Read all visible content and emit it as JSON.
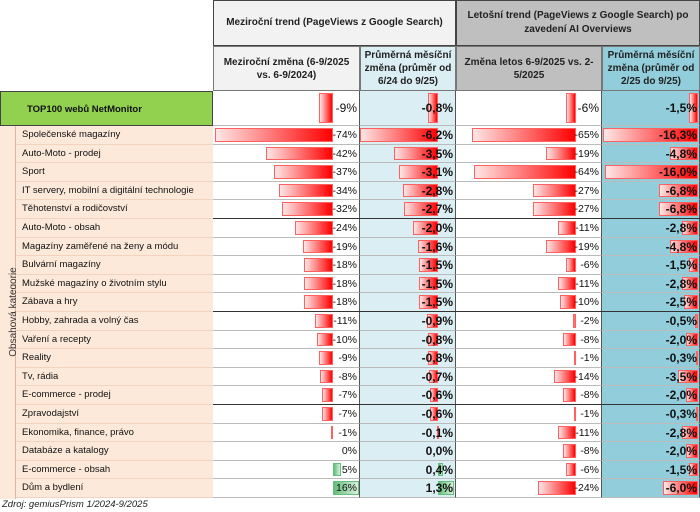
{
  "header": {
    "group1": "Meziroční trend (PageViews z Google Search)",
    "group2": "Letošní trend (PageViews z Google Search) po zavedení AI Overviews",
    "col_a": "Meziroční změna (6-9/2025 vs. 6-9/2024)",
    "col_b": "Průměrná měsíční změna (průměr od 6/24 do 9/25)",
    "col_c": "Změna letos  6-9/2025 vs. 2-5/2025",
    "col_d": "Průměrná měsíční změna (průměr od 2/25 do 9/25)"
  },
  "total": {
    "label": "TOP100 webů NetMonitor",
    "a": "-9%",
    "b": "-0,8%",
    "c": "-6%",
    "d": "-1,5%",
    "av": -9,
    "bv": -0.8,
    "cv": -6,
    "dv": -1.5
  },
  "side_label": "Obsahová kategorie",
  "rows": [
    {
      "label": "Společenské magazíny",
      "a": "-74%",
      "b": "-6,2%",
      "c": "-65%",
      "d": "-16,3%",
      "av": -74,
      "bv": -6.2,
      "cv": -65,
      "dv": -16.3
    },
    {
      "label": "Auto-Moto - prodej",
      "a": "-42%",
      "b": "-3,5%",
      "c": "-19%",
      "d": "-4,8%",
      "av": -42,
      "bv": -3.5,
      "cv": -19,
      "dv": -4.8
    },
    {
      "label": "Sport",
      "a": "-37%",
      "b": "-3,1%",
      "c": "-64%",
      "d": "-16,0%",
      "av": -37,
      "bv": -3.1,
      "cv": -64,
      "dv": -16.0
    },
    {
      "label": "IT servery, mobilní a digitální technologie",
      "a": "-34%",
      "b": "-2,8%",
      "c": "-27%",
      "d": "-6,8%",
      "av": -34,
      "bv": -2.8,
      "cv": -27,
      "dv": -6.8
    },
    {
      "label": "Těhotenství a rodičovství",
      "a": "-32%",
      "b": "-2,7%",
      "c": "-27%",
      "d": "-6,8%",
      "av": -32,
      "bv": -2.7,
      "cv": -27,
      "dv": -6.8
    },
    {
      "label": "Auto-Moto - obsah",
      "a": "-24%",
      "b": "-2,0%",
      "c": "-11%",
      "d": "-2,8%",
      "av": -24,
      "bv": -2.0,
      "cv": -11,
      "dv": -2.8
    },
    {
      "label": "Magazíny zaměřené na ženy a módu",
      "a": "-19%",
      "b": "-1,6%",
      "c": "-19%",
      "d": "-4,8%",
      "av": -19,
      "bv": -1.6,
      "cv": -19,
      "dv": -4.8
    },
    {
      "label": "Bulvární magazíny",
      "a": "-18%",
      "b": "-1,5%",
      "c": "-6%",
      "d": "-1,5%",
      "av": -18,
      "bv": -1.5,
      "cv": -6,
      "dv": -1.5
    },
    {
      "label": "Mužské magazíny o životním stylu",
      "a": "-18%",
      "b": "-1,5%",
      "c": "-11%",
      "d": "-2,8%",
      "av": -18,
      "bv": -1.5,
      "cv": -11,
      "dv": -2.8
    },
    {
      "label": "Zábava a hry",
      "a": "-18%",
      "b": "-1,5%",
      "c": "-10%",
      "d": "-2,5%",
      "av": -18,
      "bv": -1.5,
      "cv": -10,
      "dv": -2.5
    },
    {
      "label": "Hobby, zahrada a volný čas",
      "a": "-11%",
      "b": "-0,9%",
      "c": "-2%",
      "d": "-0,5%",
      "av": -11,
      "bv": -0.9,
      "cv": -2,
      "dv": -0.5
    },
    {
      "label": "Vaření a recepty",
      "a": "-10%",
      "b": "-0,8%",
      "c": "-8%",
      "d": "-2,0%",
      "av": -10,
      "bv": -0.8,
      "cv": -8,
      "dv": -2.0
    },
    {
      "label": "Reality",
      "a": "-9%",
      "b": "-0,8%",
      "c": "-1%",
      "d": "-0,3%",
      "av": -9,
      "bv": -0.8,
      "cv": -1,
      "dv": -0.3
    },
    {
      "label": "Tv, rádia",
      "a": "-8%",
      "b": "-0,7%",
      "c": "-14%",
      "d": "-3,5%",
      "av": -8,
      "bv": -0.7,
      "cv": -14,
      "dv": -3.5
    },
    {
      "label": "E-commerce - prodej",
      "a": "-7%",
      "b": "-0,6%",
      "c": "-8%",
      "d": "-2,0%",
      "av": -7,
      "bv": -0.6,
      "cv": -8,
      "dv": -2.0
    },
    {
      "label": "Zpravodajství",
      "a": "-7%",
      "b": "-0,6%",
      "c": "-1%",
      "d": "-0,3%",
      "av": -7,
      "bv": -0.6,
      "cv": -1,
      "dv": -0.3
    },
    {
      "label": "Ekonomika, finance, právo",
      "a": "-1%",
      "b": "-0,1%",
      "c": "-11%",
      "d": "-2,8%",
      "av": -1,
      "bv": -0.1,
      "cv": -11,
      "dv": -2.8
    },
    {
      "label": "Databáze a katalogy",
      "a": "0%",
      "b": "0,0%",
      "c": "-8%",
      "d": "-2,0%",
      "av": 0,
      "bv": 0,
      "cv": -8,
      "dv": -2.0
    },
    {
      "label": "E-commerce - obsah",
      "a": "5%",
      "b": "0,4%",
      "c": "-6%",
      "d": "-1,5%",
      "av": 5,
      "bv": 0.4,
      "cv": -6,
      "dv": -1.5
    },
    {
      "label": "Dům a bydlení",
      "a": "16%",
      "b": "1,3%",
      "c": "-24%",
      "d": "-6,0%",
      "av": 16,
      "bv": 1.3,
      "cv": -24,
      "dv": -6.0
    }
  ],
  "source": "Zdroj: gemiusPrism 1/2024-9/2025",
  "colors": {
    "label_bg": "#fde9d9",
    "total_bg": "#92d050",
    "col_b_bg": "#daeef3",
    "col_d_bg": "#92cddc",
    "group1_bg": "#f2f2f2",
    "group2_bg": "#bfbfbf",
    "neg": "#ff0000",
    "pos": "#63be7b"
  }
}
